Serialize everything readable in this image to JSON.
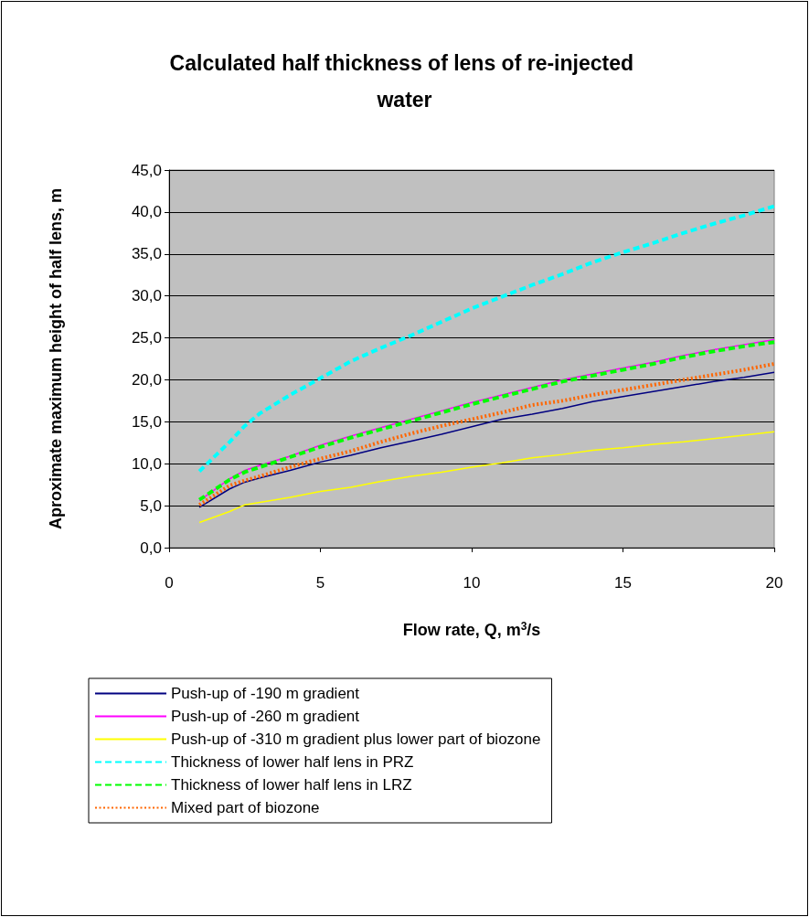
{
  "chart_data": {
    "type": "line",
    "title": "Calculated half thickness of lens of re-injected water",
    "xlabel": "Flow rate, Q, m$^{3}$/s",
    "ylabel": "Aproximate maximum height of half lens, m",
    "x": [
      1,
      2,
      2.5,
      3,
      4,
      5,
      6,
      7,
      8,
      9,
      10,
      11,
      12,
      13,
      14,
      15,
      16,
      17,
      18,
      19,
      20
    ],
    "series": [
      {
        "name": "Push-up of -190 m gradient",
        "color": "#000080",
        "line_style": "solid",
        "values": [
          4.8,
          7.0,
          7.8,
          8.3,
          9.2,
          10.2,
          11.0,
          11.9,
          12.7,
          13.5,
          14.4,
          15.3,
          15.9,
          16.6,
          17.4,
          18.0,
          18.6,
          19.2,
          19.8,
          20.3,
          20.9
        ]
      },
      {
        "name": "Push-up of -260 m gradient",
        "color": "#ff00ff",
        "line_style": "solid",
        "values": [
          5.6,
          8.2,
          9.2,
          9.8,
          10.9,
          12.2,
          13.3,
          14.3,
          15.3,
          16.3,
          17.3,
          18.2,
          19.1,
          20.0,
          20.7,
          21.4,
          22.1,
          22.9,
          23.6,
          24.2,
          24.8
        ]
      },
      {
        "name": "Push-up of -310 m gradient plus lower part of biozone",
        "color": "#ffff00",
        "line_style": "solid",
        "values": [
          3.0,
          4.3,
          5.1,
          5.4,
          6.0,
          6.7,
          7.2,
          7.9,
          8.5,
          9.0,
          9.6,
          10.1,
          10.7,
          11.1,
          11.6,
          11.9,
          12.3,
          12.6,
          13.0,
          13.4,
          13.8
        ]
      },
      {
        "name": "Thickness of lower half lens in PRZ",
        "color": "#00ffff",
        "line_style": "dashed",
        "values": [
          9.1,
          12.6,
          14.5,
          16.0,
          18.2,
          20.2,
          22.2,
          23.8,
          25.3,
          26.9,
          28.5,
          29.9,
          31.3,
          32.6,
          34.0,
          35.2,
          36.3,
          37.5,
          38.6,
          39.6,
          40.7
        ]
      },
      {
        "name": "Thickness of lower half lens in LRZ",
        "color": "#00ff00",
        "line_style": "dashed",
        "values": [
          5.7,
          8.1,
          9.0,
          9.6,
          10.8,
          12.0,
          13.1,
          14.1,
          15.1,
          16.1,
          17.1,
          18.0,
          18.9,
          19.8,
          20.5,
          21.2,
          21.9,
          22.7,
          23.4,
          24.0,
          24.5
        ]
      },
      {
        "name": "Mixed part of biozone",
        "color": "#ff6600",
        "line_style": "dotted",
        "values": [
          5.1,
          7.4,
          8.0,
          8.5,
          9.6,
          10.6,
          11.5,
          12.6,
          13.6,
          14.5,
          15.3,
          16.1,
          17.0,
          17.5,
          18.2,
          18.8,
          19.4,
          20.0,
          20.6,
          21.2,
          21.9
        ]
      }
    ],
    "xlim": [
      0,
      20
    ],
    "xticks": [
      0,
      5,
      10,
      15,
      20
    ],
    "ylim": [
      0,
      45
    ],
    "yticks": [
      {
        "value": 0,
        "label": "0,0"
      },
      {
        "value": 5,
        "label": "5,0"
      },
      {
        "value": 10,
        "label": "10,0"
      },
      {
        "value": 15,
        "label": "15,0"
      },
      {
        "value": 20,
        "label": "20,0"
      },
      {
        "value": 25,
        "label": "25,0"
      },
      {
        "value": 30,
        "label": "30,0"
      },
      {
        "value": 35,
        "label": "35,0"
      },
      {
        "value": 40,
        "label": "40,0"
      },
      {
        "value": 45,
        "label": "45,0"
      }
    ],
    "grid": "y",
    "legend": "bottom",
    "marker": "none"
  }
}
